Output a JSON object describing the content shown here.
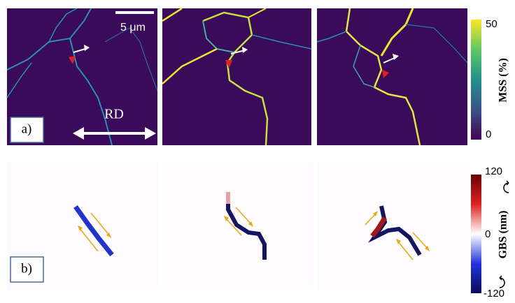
{
  "figure": {
    "panel_a": {
      "label": "a)",
      "scale_bar": "5 μm",
      "direction": "RD"
    },
    "panel_b": {
      "label": "b)"
    },
    "colorbar_mss": {
      "title": "MSS (%)",
      "ticks": [
        "50",
        "0"
      ]
    },
    "colorbar_gbs": {
      "title": "GBS (nm)",
      "ticks": [
        "120",
        "0",
        "-120"
      ]
    }
  }
}
